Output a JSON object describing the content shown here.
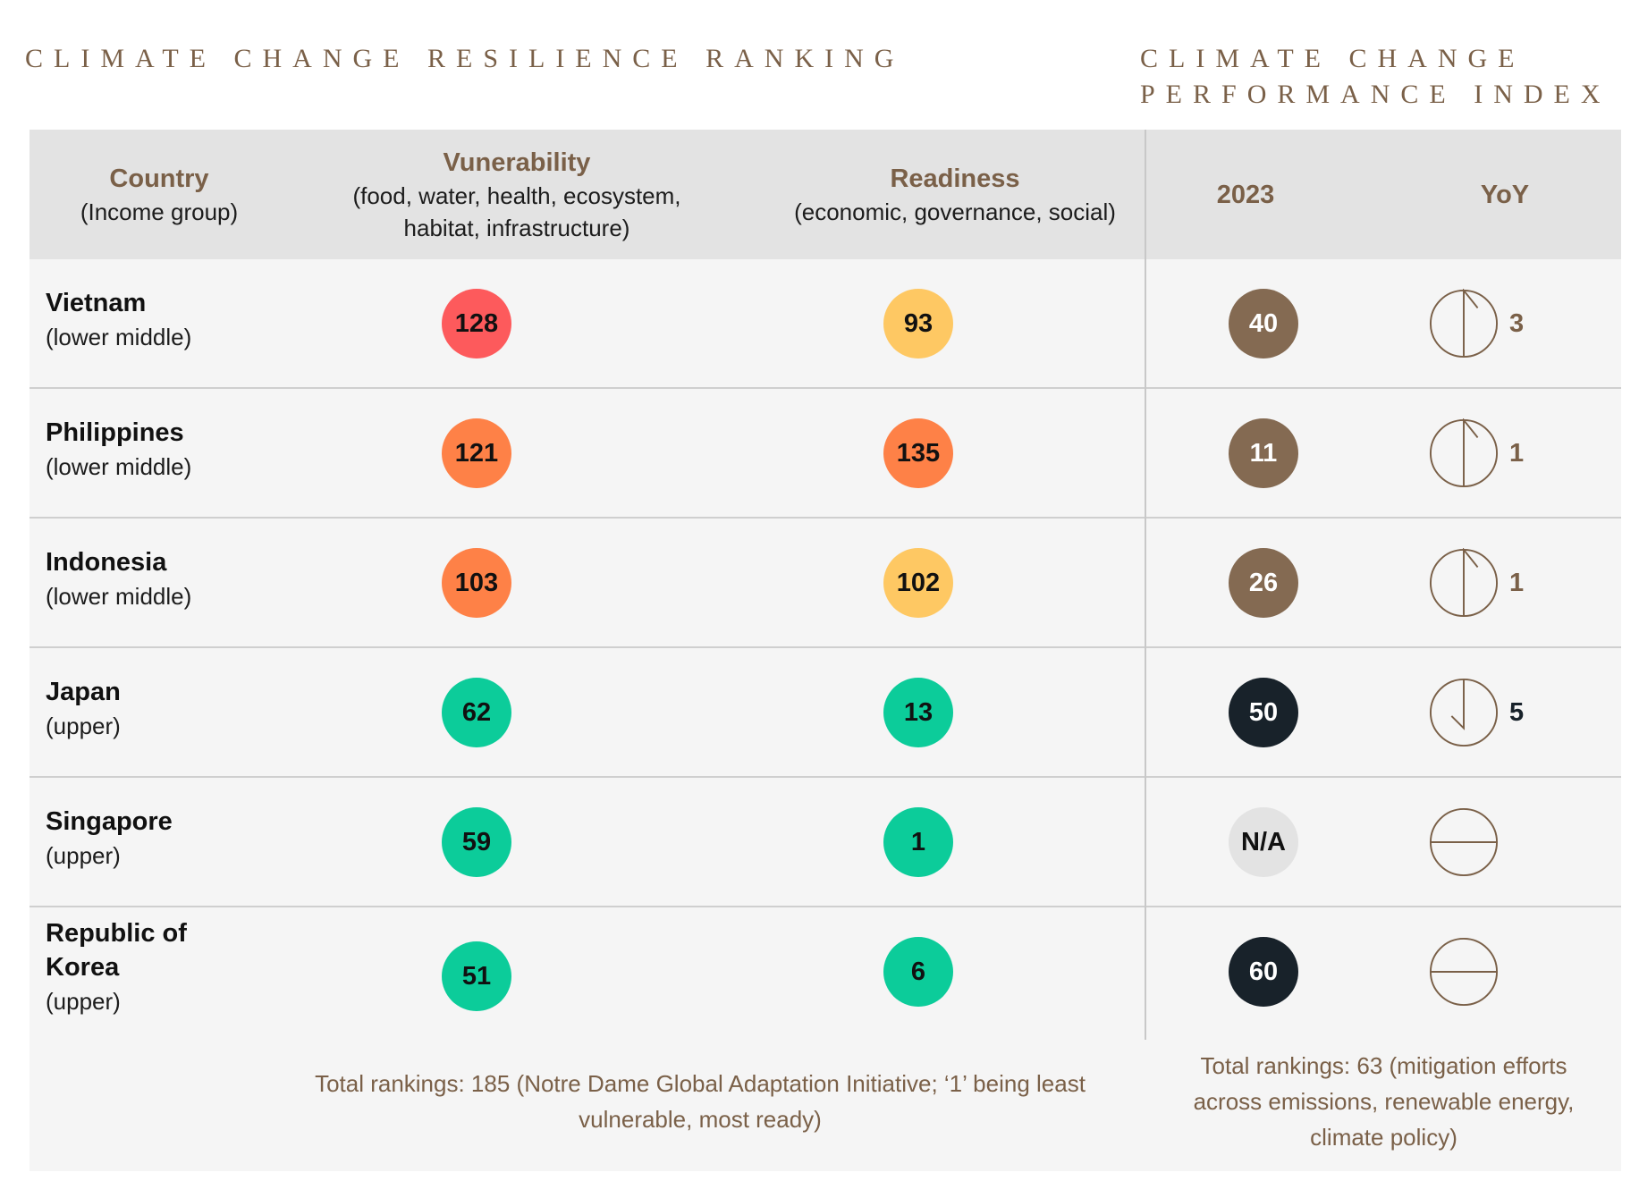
{
  "titles": {
    "left": "CLIMATE CHANGE RESILIENCE RANKING",
    "right_line1": "CLIMATE CHANGE",
    "right_line2": "PERFORMANCE INDEX"
  },
  "header": {
    "country": "Country",
    "country_sub": "(Income group)",
    "vulnerability": "Vunerability",
    "vulnerability_sub1": "(food, water, health, ecosystem,",
    "vulnerability_sub2": "habitat, infrastructure)",
    "readiness": "Readiness",
    "readiness_sub": "(economic, governance, social)",
    "year": "2023",
    "yoy": "YoY"
  },
  "colors": {
    "red": "#fd5a5c",
    "orange": "#fe8147",
    "yellow": "#fec863",
    "green": "#0ccc9a",
    "brown": "#846a52",
    "dark": "#18222a",
    "gray": "#e3e3e3",
    "accent_text": "#7a6048"
  },
  "rows": [
    {
      "name_line1": "Vietnam",
      "name_line2": "",
      "group": "(lower middle)",
      "vuln": "128",
      "vuln_color": "red",
      "ready": "93",
      "ready_color": "yellow",
      "cci": "40",
      "cci_color": "brown",
      "yoy_icon": "up-arrow-circle-icon",
      "yoy": "3"
    },
    {
      "name_line1": "Philippines",
      "name_line2": "",
      "group": "(lower middle)",
      "vuln": "121",
      "vuln_color": "orange",
      "ready": "135",
      "ready_color": "orange",
      "cci": "11",
      "cci_color": "brown",
      "yoy_icon": "up-arrow-circle-icon",
      "yoy": "1"
    },
    {
      "name_line1": "Indonesia",
      "name_line2": "",
      "group": "(lower middle)",
      "vuln": "103",
      "vuln_color": "orange",
      "ready": "102",
      "ready_color": "yellow",
      "cci": "26",
      "cci_color": "brown",
      "yoy_icon": "up-arrow-circle-icon",
      "yoy": "1"
    },
    {
      "name_line1": "Japan",
      "name_line2": "",
      "group": "(upper)",
      "vuln": "62",
      "vuln_color": "green",
      "ready": "13",
      "ready_color": "green",
      "cci": "50",
      "cci_color": "dark",
      "yoy_icon": "down-arrow-circle-icon",
      "yoy": "5"
    },
    {
      "name_line1": "Singapore",
      "name_line2": "",
      "group": "(upper)",
      "vuln": "59",
      "vuln_color": "green",
      "ready": "1",
      "ready_color": "green",
      "cci": "N/A",
      "cci_color": "gray",
      "yoy_icon": "no-change-circle-icon",
      "yoy": ""
    },
    {
      "name_line1": "Republic of",
      "name_line2": "Korea",
      "group": "(upper)",
      "vuln": "51",
      "vuln_color": "green",
      "ready": "6",
      "ready_color": "green",
      "cci": "60",
      "cci_color": "dark",
      "yoy_icon": "no-change-circle-icon",
      "yoy": ""
    }
  ],
  "footnotes": {
    "left_line1": "Total rankings: 185 (Notre Dame Global Adaptation Initiative; ‘1’ being least",
    "left_line2": "vulnerable, most ready)",
    "right_line1": "Total rankings: 63 (mitigation efforts",
    "right_line2": "across emissions, renewable energy,",
    "right_line3": "climate policy)"
  }
}
